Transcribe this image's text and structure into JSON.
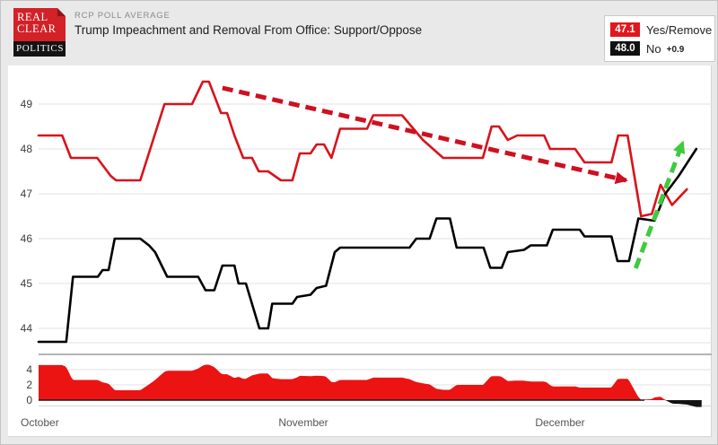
{
  "header": {
    "kicker": "RCP POLL AVERAGE",
    "title": "Trump Impeachment and Removal From Office: Support/Oppose",
    "logo": {
      "line1": "REAL",
      "line2": "CLEAR",
      "line3": "POLITICS"
    }
  },
  "legend": {
    "items": [
      {
        "value": "47.1",
        "label": "Yes/Remove",
        "color": "#e0181e"
      },
      {
        "value": "48.0",
        "label": "No",
        "color": "#111111"
      }
    ],
    "spread": "+0.9"
  },
  "chart_data": {
    "type": "line",
    "title": "Trump Impeachment and Removal From Office: Support/Oppose",
    "x_axis": {
      "start": "Oct 1",
      "end": "Dec 18",
      "note": "t is fraction of the horizontal axis from Oct 1 (0.0) to Dec 18 (1.0)",
      "month_labels": [
        {
          "label": "October",
          "t": 0.004
        },
        {
          "label": "November",
          "t": 0.393
        },
        {
          "label": "December",
          "t": 0.775
        }
      ]
    },
    "y_axis": {
      "ticks": [
        49,
        48,
        47,
        46,
        45,
        44
      ],
      "min": 43.6,
      "max": 49.7,
      "grid": true
    },
    "spread_axis": {
      "ticks": [
        4,
        2,
        0
      ],
      "note": "lower panel: Yes minus No spread; red above zero, black below zero",
      "current": -0.9
    },
    "series": [
      {
        "name": "Yes/Remove",
        "color": "#d8131b",
        "current": 47.1,
        "points": [
          [
            0,
            48.3
          ],
          [
            0.035,
            48.3
          ],
          [
            0.048,
            47.8
          ],
          [
            0.087,
            47.8
          ],
          [
            0.107,
            47.4
          ],
          [
            0.115,
            47.3
          ],
          [
            0.151,
            47.3
          ],
          [
            0.187,
            49.0
          ],
          [
            0.228,
            49.0
          ],
          [
            0.244,
            49.5
          ],
          [
            0.253,
            49.5
          ],
          [
            0.271,
            48.8
          ],
          [
            0.28,
            48.8
          ],
          [
            0.291,
            48.3
          ],
          [
            0.304,
            47.8
          ],
          [
            0.317,
            47.8
          ],
          [
            0.327,
            47.5
          ],
          [
            0.341,
            47.5
          ],
          [
            0.36,
            47.3
          ],
          [
            0.377,
            47.3
          ],
          [
            0.388,
            47.9
          ],
          [
            0.404,
            47.9
          ],
          [
            0.413,
            48.1
          ],
          [
            0.424,
            48.1
          ],
          [
            0.435,
            47.8
          ],
          [
            0.448,
            48.45
          ],
          [
            0.488,
            48.45
          ],
          [
            0.497,
            48.75
          ],
          [
            0.54,
            48.75
          ],
          [
            0.571,
            48.2
          ],
          [
            0.601,
            47.8
          ],
          [
            0.66,
            47.8
          ],
          [
            0.673,
            48.5
          ],
          [
            0.684,
            48.5
          ],
          [
            0.697,
            48.2
          ],
          [
            0.711,
            48.3
          ],
          [
            0.751,
            48.3
          ],
          [
            0.76,
            48.0
          ],
          [
            0.797,
            48.0
          ],
          [
            0.811,
            47.7
          ],
          [
            0.851,
            47.7
          ],
          [
            0.861,
            48.3
          ],
          [
            0.875,
            48.3
          ],
          [
            0.895,
            46.5
          ],
          [
            0.911,
            46.55
          ],
          [
            0.924,
            47.2
          ],
          [
            0.941,
            46.75
          ],
          [
            0.963,
            47.1
          ]
        ]
      },
      {
        "name": "No",
        "color": "#000000",
        "current": 48.0,
        "points": [
          [
            0,
            43.7
          ],
          [
            0.041,
            43.7
          ],
          [
            0.051,
            45.15
          ],
          [
            0.088,
            45.15
          ],
          [
            0.095,
            45.3
          ],
          [
            0.104,
            45.3
          ],
          [
            0.113,
            46.0
          ],
          [
            0.151,
            46.0
          ],
          [
            0.164,
            45.85
          ],
          [
            0.173,
            45.7
          ],
          [
            0.191,
            45.15
          ],
          [
            0.237,
            45.15
          ],
          [
            0.248,
            44.85
          ],
          [
            0.261,
            44.85
          ],
          [
            0.273,
            45.4
          ],
          [
            0.291,
            45.4
          ],
          [
            0.297,
            45.0
          ],
          [
            0.308,
            45.0
          ],
          [
            0.328,
            44.0
          ],
          [
            0.341,
            44.0
          ],
          [
            0.347,
            44.55
          ],
          [
            0.377,
            44.55
          ],
          [
            0.384,
            44.7
          ],
          [
            0.404,
            44.75
          ],
          [
            0.413,
            44.9
          ],
          [
            0.427,
            44.95
          ],
          [
            0.44,
            45.7
          ],
          [
            0.448,
            45.8
          ],
          [
            0.551,
            45.8
          ],
          [
            0.561,
            46.0
          ],
          [
            0.581,
            46.0
          ],
          [
            0.591,
            46.45
          ],
          [
            0.611,
            46.45
          ],
          [
            0.621,
            45.8
          ],
          [
            0.661,
            45.8
          ],
          [
            0.671,
            45.35
          ],
          [
            0.688,
            45.35
          ],
          [
            0.697,
            45.7
          ],
          [
            0.721,
            45.75
          ],
          [
            0.731,
            45.85
          ],
          [
            0.755,
            45.85
          ],
          [
            0.764,
            46.2
          ],
          [
            0.804,
            46.2
          ],
          [
            0.811,
            46.05
          ],
          [
            0.851,
            46.05
          ],
          [
            0.86,
            45.5
          ],
          [
            0.877,
            45.5
          ],
          [
            0.891,
            46.45
          ],
          [
            0.915,
            46.4
          ],
          [
            0.931,
            47.0
          ],
          [
            0.951,
            47.4
          ],
          [
            0.977,
            48.0
          ]
        ]
      }
    ],
    "annotations": [
      {
        "type": "trend-arrow",
        "direction": "down",
        "style": "dashed",
        "color": "#cf1020",
        "from": [
          0.273,
          49.36
        ],
        "to": [
          0.873,
          47.3
        ]
      },
      {
        "type": "trend-arrow",
        "direction": "up",
        "style": "dashed",
        "color": "#3ecb3e",
        "from": [
          0.887,
          45.34
        ],
        "to": [
          0.957,
          48.15
        ]
      }
    ]
  }
}
